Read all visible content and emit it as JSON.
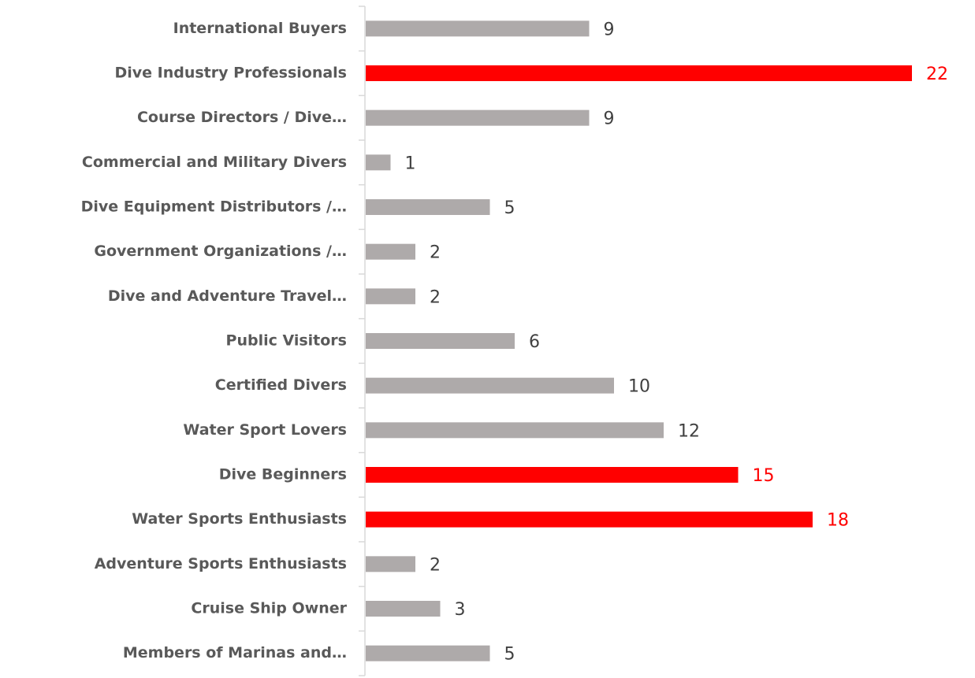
{
  "chart_data": {
    "type": "barh",
    "categories": [
      "International Buyers",
      "Dive Industry Professionals",
      "Course Directors / Dive…",
      "Commercial and Military Divers",
      "Dive Equipment Distributors /…",
      "Government Organizations /…",
      "Dive and Adventure Travel…",
      "Public Visitors",
      "Certified Divers",
      "Water Sport Lovers",
      "Dive Beginners",
      "Water Sports Enthusiasts",
      "Adventure Sports Enthusiasts",
      "Cruise Ship Owner",
      "Members of Marinas and…"
    ],
    "values": [
      9,
      22,
      9,
      1,
      5,
      2,
      2,
      6,
      10,
      12,
      15,
      18,
      2,
      3,
      5
    ],
    "color": "#aeaaaa",
    "colors": [
      "#aeaaaa",
      "#ff0000",
      "#aeaaaa",
      "#aeaaaa",
      "#aeaaaa",
      "#aeaaaa",
      "#aeaaaa",
      "#aeaaaa",
      "#aeaaaa",
      "#aeaaaa",
      "#ff0000",
      "#ff0000",
      "#aeaaaa",
      "#aeaaaa",
      "#aeaaaa"
    ]
  }
}
